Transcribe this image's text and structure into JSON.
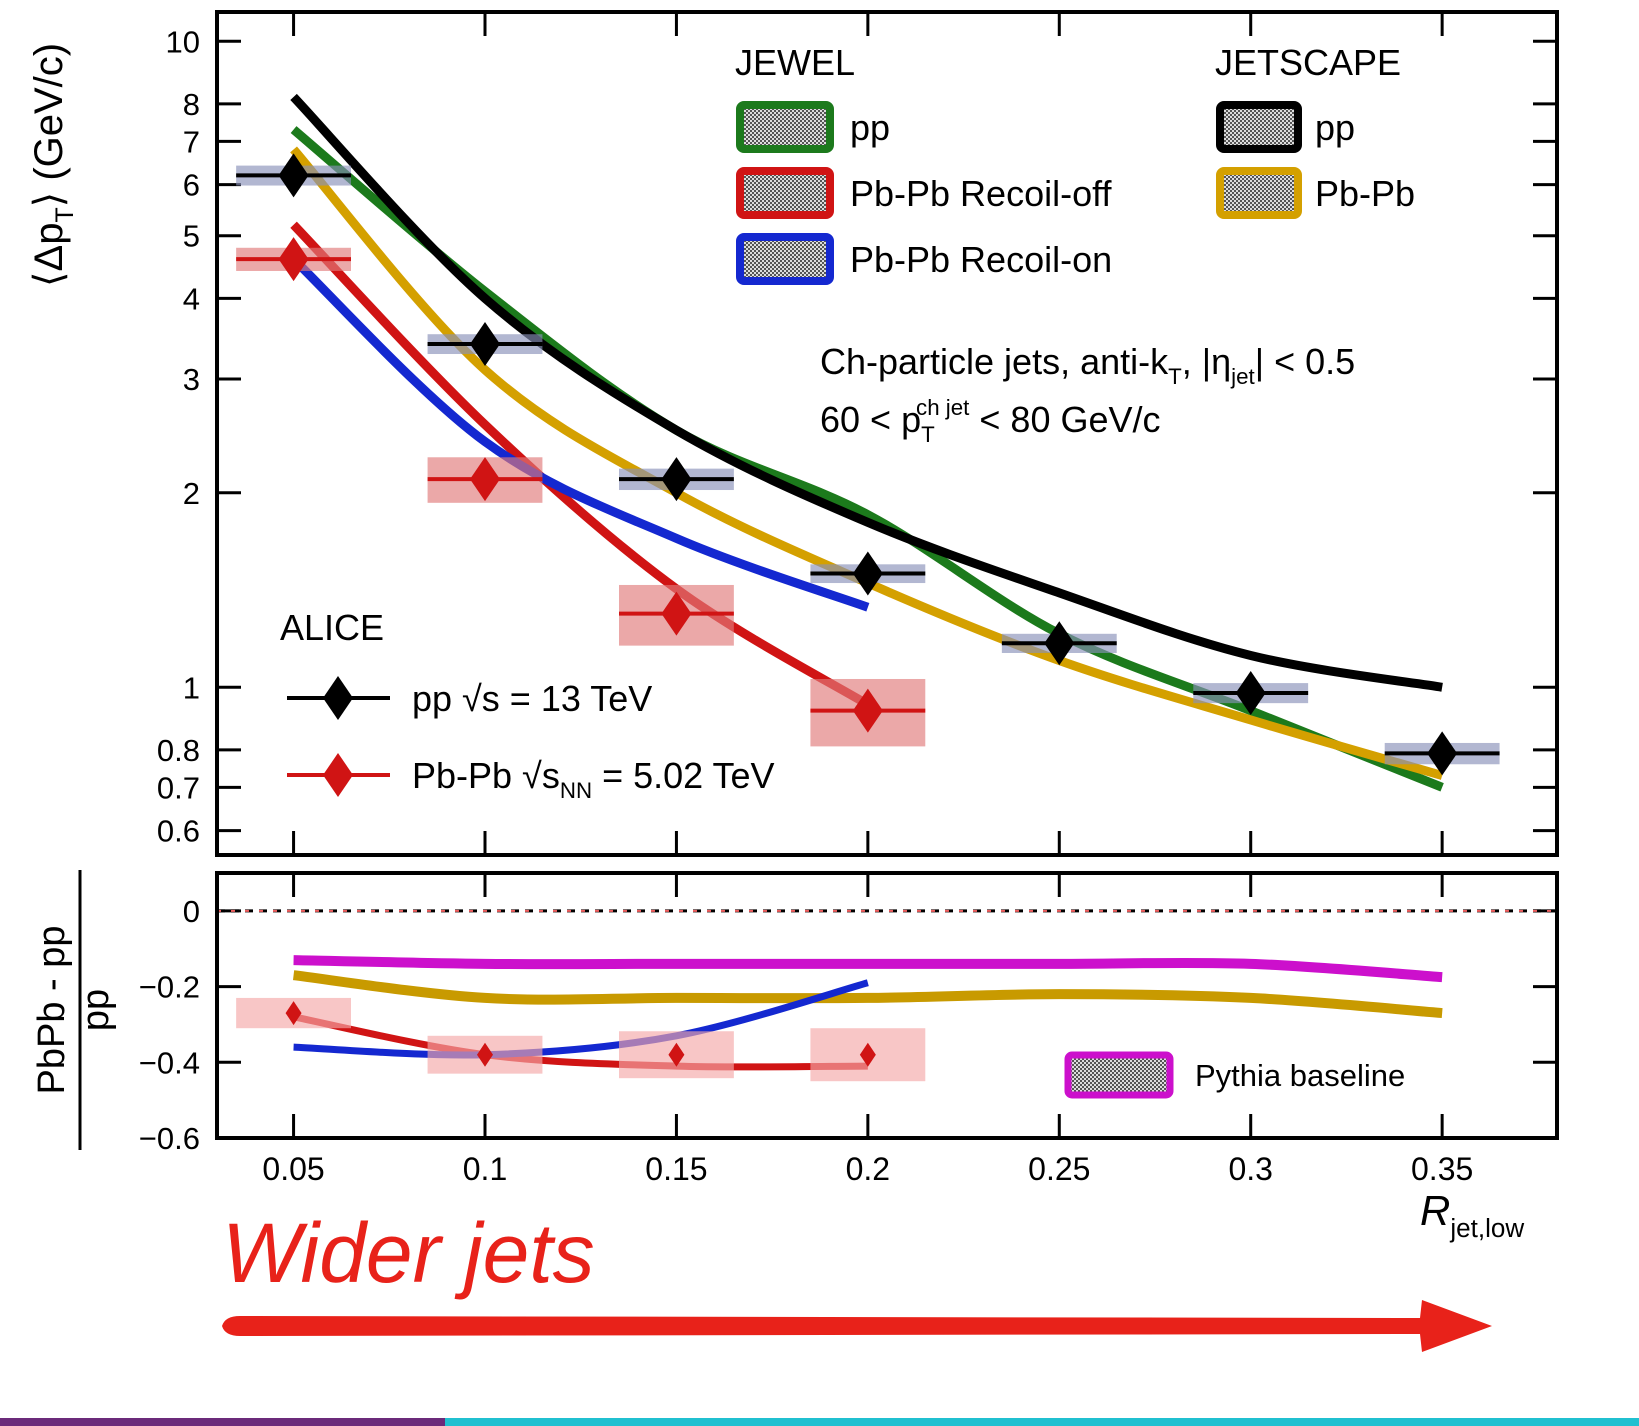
{
  "caption": "Wider jets",
  "chart_data": [
    {
      "type": "line",
      "log_y": true,
      "ylabel": [
        "⟨Δp",
        "T",
        "⟩ (GeV/c)"
      ],
      "xlim": [
        0.03,
        0.38
      ],
      "ylim": [
        0.55,
        11.1
      ],
      "xticks": [
        0.05,
        0.1,
        0.15,
        0.2,
        0.25,
        0.3,
        0.35
      ],
      "yticks": [
        0.6,
        0.7,
        0.8,
        1,
        2,
        3,
        4,
        5,
        6,
        7,
        8,
        10
      ],
      "models": [
        {
          "name": "JEWEL",
          "series": [
            {
              "name": "pp",
              "color": "#1c7a1c",
              "x": [
                0.05,
                0.1,
                0.15,
                0.2,
                0.25,
                0.3,
                0.35
              ],
              "values": [
                7.3,
                4.1,
                2.5,
                1.85,
                1.21,
                0.92,
                0.7
              ]
            },
            {
              "name": "Pb-Pb Recoil-off",
              "color": "#d01414",
              "x": [
                0.05,
                0.1,
                0.15,
                0.2
              ],
              "values": [
                5.2,
                2.55,
                1.42,
                0.94
              ]
            },
            {
              "name": "Pb-Pb Recoil-on",
              "color": "#1428d0",
              "x": [
                0.05,
                0.1,
                0.15,
                0.2
              ],
              "values": [
                4.6,
                2.4,
                1.7,
                1.33
              ]
            }
          ]
        },
        {
          "name": "JETSCAPE",
          "series": [
            {
              "name": "pp",
              "color": "#000000",
              "x": [
                0.05,
                0.1,
                0.15,
                0.2,
                0.25,
                0.3,
                0.35
              ],
              "values": [
                8.2,
                4.0,
                2.5,
                1.8,
                1.4,
                1.12,
                1.0
              ]
            },
            {
              "name": "Pb-Pb",
              "color": "#d4a000",
              "x": [
                0.05,
                0.1,
                0.15,
                0.2,
                0.25,
                0.3,
                0.35
              ],
              "values": [
                6.8,
                3.1,
                2.0,
                1.45,
                1.1,
                0.89,
                0.73
              ]
            }
          ]
        }
      ],
      "data": {
        "name": "ALICE",
        "series": [
          {
            "name": [
              "pp √s = 13 TeV"
            ],
            "color": "#000000",
            "box_color": "#8890b8",
            "x": [
              0.05,
              0.1,
              0.15,
              0.2,
              0.25,
              0.3,
              0.35
            ],
            "xerr": [
              0.015,
              0.015,
              0.015,
              0.015,
              0.015,
              0.015,
              0.015
            ],
            "values": [
              6.2,
              3.4,
              2.1,
              1.5,
              1.17,
              0.98,
              0.79
            ],
            "syst": [
              0.22,
              0.12,
              0.08,
              0.05,
              0.04,
              0.035,
              0.03
            ]
          },
          {
            "name": [
              "Pb-Pb √s",
              "NN",
              " = 5.02 TeV"
            ],
            "color": "#d01414",
            "box_color": "#e07a7a",
            "x": [
              0.05,
              0.1,
              0.15,
              0.2
            ],
            "xerr": [
              0.015,
              0.015,
              0.015,
              0.015
            ],
            "values": [
              4.6,
              2.1,
              1.3,
              0.92
            ],
            "syst": [
              0.19,
              0.17,
              0.14,
              0.11
            ]
          }
        ]
      },
      "annotations": [
        {
          "parts": [
            "Ch-particle jets, anti-k",
            "T",
            ", |η",
            "jet",
            "| < 0.5"
          ]
        },
        {
          "parts": [
            "60 < p",
            "T",
            " < 80 GeV/c"
          ],
          "sup": "ch jet"
        }
      ]
    },
    {
      "type": "line",
      "ylabel_num": "PbPb - pp",
      "ylabel_den": "pp",
      "xlabel": [
        "R",
        "jet,low"
      ],
      "xlim": [
        0.03,
        0.38
      ],
      "ylim": [
        -0.6,
        0.1
      ],
      "hline": 0,
      "xticks": [
        0.05,
        0.1,
        0.15,
        0.2,
        0.25,
        0.3,
        0.35
      ],
      "yticks": [
        0,
        {
          "value": -0.2,
          "label": "−0.2"
        },
        {
          "value": -0.4,
          "label": "−0.4"
        },
        {
          "value": -0.6,
          "label": "−0.6"
        }
      ],
      "series": [
        {
          "name": "Pythia baseline",
          "color": "#cc10cc",
          "x": [
            0.05,
            0.1,
            0.15,
            0.2,
            0.25,
            0.3,
            0.35
          ],
          "values": [
            -0.13,
            -0.14,
            -0.14,
            -0.14,
            -0.14,
            -0.14,
            -0.175
          ]
        },
        {
          "color": "#c89a00",
          "x": [
            0.05,
            0.1,
            0.15,
            0.2,
            0.25,
            0.3,
            0.35
          ],
          "values": [
            -0.17,
            -0.23,
            -0.23,
            -0.23,
            -0.22,
            -0.23,
            -0.27
          ]
        },
        {
          "color": "#d01414",
          "x": [
            0.05,
            0.1,
            0.15,
            0.2
          ],
          "values": [
            -0.28,
            -0.38,
            -0.41,
            -0.41
          ]
        },
        {
          "color": "#1428d0",
          "x": [
            0.05,
            0.1,
            0.15,
            0.2
          ],
          "values": [
            -0.36,
            -0.38,
            -0.33,
            -0.19
          ]
        }
      ],
      "data_series": [
        {
          "color": "#d01414",
          "box_color": "#f4a8a8",
          "x": [
            0.05,
            0.1,
            0.15,
            0.2
          ],
          "xerr": [
            0.015,
            0.015,
            0.015,
            0.015
          ],
          "values": [
            -0.27,
            -0.38,
            -0.38,
            -0.38
          ],
          "syst": [
            0.04,
            0.05,
            0.062,
            0.07
          ]
        }
      ]
    }
  ]
}
